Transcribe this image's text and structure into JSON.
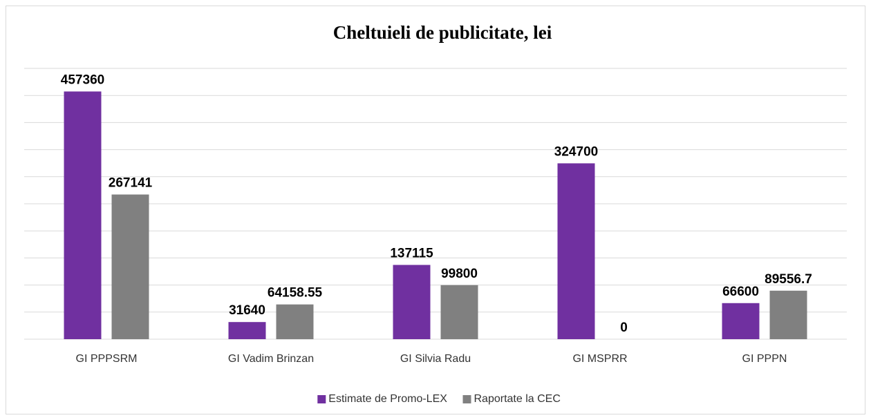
{
  "chart_data": {
    "type": "bar",
    "title": "Cheltuieli de publicitate, lei",
    "categories": [
      "GI PPPSRM",
      "GI Vadim Brinzan",
      "GI Silvia Radu",
      "GI MSPRR",
      "GI PPPN"
    ],
    "series": [
      {
        "name": "Estimate de Promo-LEX",
        "color": "#7030a0",
        "values": [
          457360,
          31640,
          137115,
          324700,
          66600
        ]
      },
      {
        "name": "Raportate la CEC",
        "color": "#808080",
        "values": [
          267141,
          64158.55,
          99800,
          0,
          89556.7
        ]
      }
    ],
    "ylim": [
      0,
      500000
    ],
    "yticks": [
      0,
      50000,
      100000,
      150000,
      200000,
      250000,
      300000,
      350000,
      400000,
      450000,
      500000
    ],
    "grid": true,
    "legend": "bottom"
  }
}
